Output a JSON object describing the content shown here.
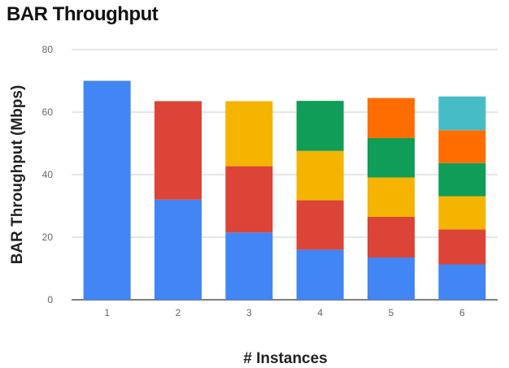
{
  "chart_data": {
    "type": "bar",
    "stacked": true,
    "title": "BAR Throughput",
    "xlabel": "# Instances",
    "ylabel": "BAR Throughput (Mbps)",
    "ylim": [
      0,
      80
    ],
    "yticks": [
      0,
      20,
      40,
      60,
      80
    ],
    "grid": true,
    "legend": "none",
    "categories": [
      "1",
      "2",
      "3",
      "4",
      "5",
      "6"
    ],
    "series": [
      {
        "color": "#4285f4",
        "values": [
          70,
          32,
          21.5,
          16,
          13.5,
          11.3
        ]
      },
      {
        "color": "#db4437",
        "values": [
          0,
          31.5,
          21.2,
          15.8,
          13,
          11.2
        ]
      },
      {
        "color": "#f4b400",
        "values": [
          0,
          0,
          20.8,
          15.8,
          12.6,
          10.6
        ]
      },
      {
        "color": "#0f9d58",
        "values": [
          0,
          0,
          0,
          16,
          12.6,
          10.6
        ]
      },
      {
        "color": "#ff6d00",
        "values": [
          0,
          0,
          0,
          0,
          12.8,
          10.5
        ]
      },
      {
        "color": "#46bdc6",
        "values": [
          0,
          0,
          0,
          0,
          0,
          10.8
        ]
      }
    ]
  }
}
